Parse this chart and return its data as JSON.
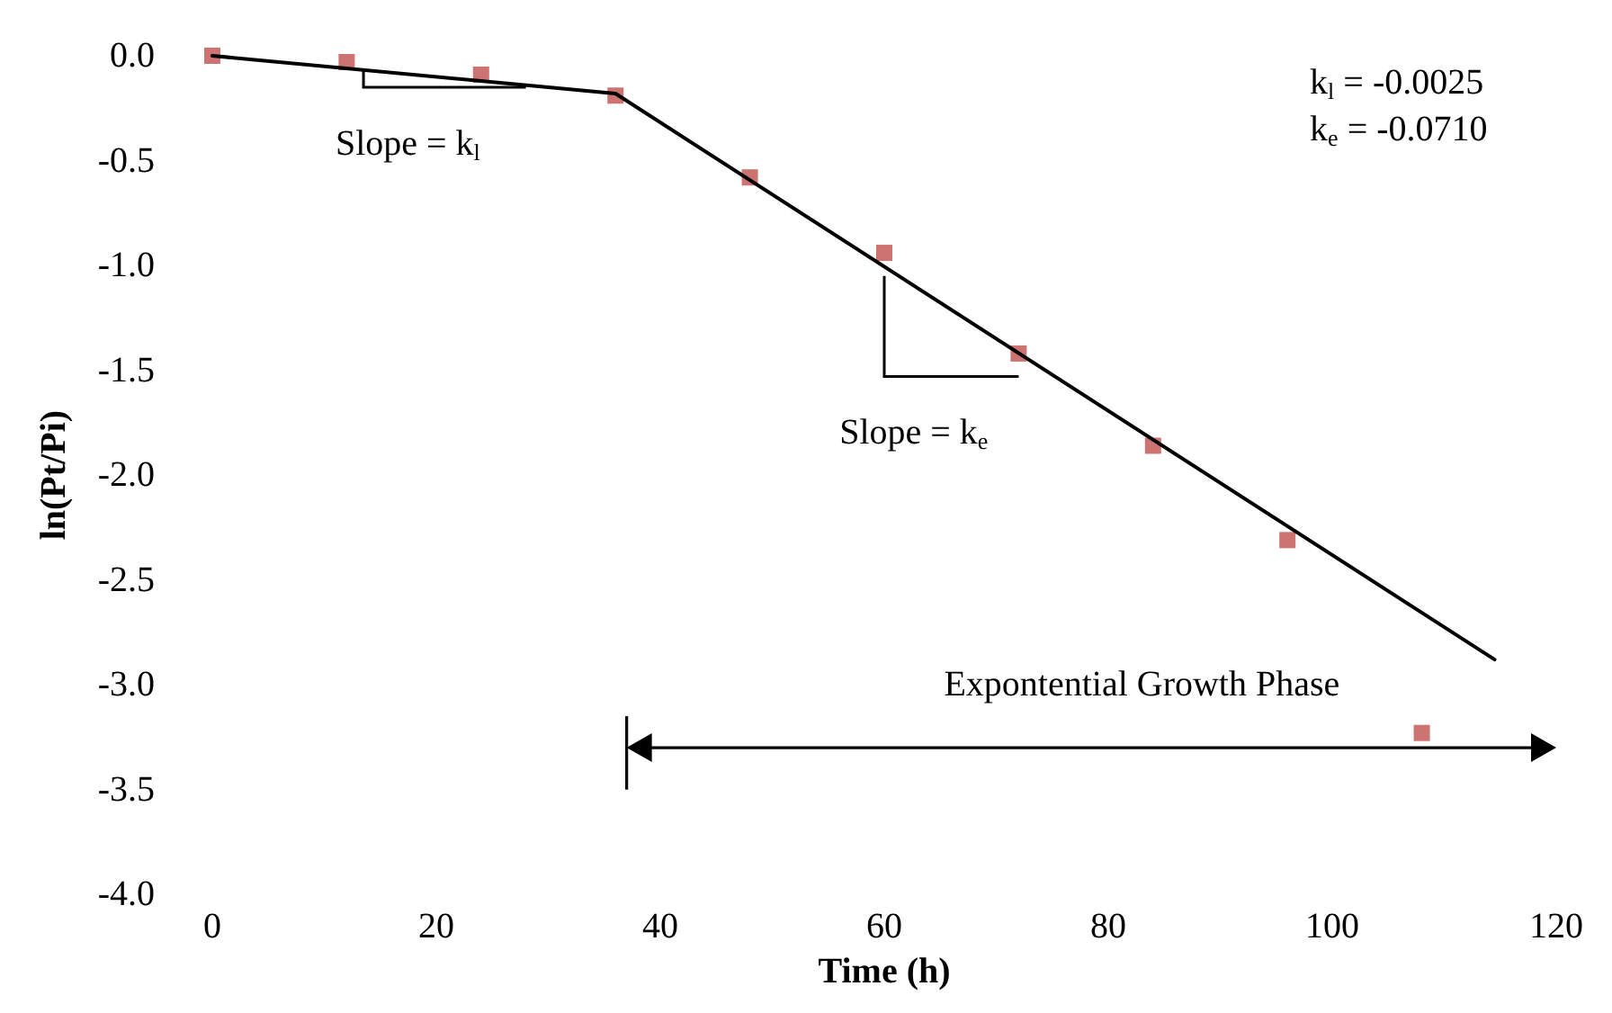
{
  "chart_data": {
    "type": "scatter",
    "xlabel": "Time (h)",
    "ylabel": "ln(Pt/Pi)",
    "xlim": [
      0,
      120
    ],
    "xticks": [
      0,
      20,
      40,
      60,
      80,
      100,
      120
    ],
    "ylim": [
      -4,
      0
    ],
    "yticks": [
      {
        "value": -4,
        "label": "-4.0"
      },
      {
        "value": -3.5,
        "label": "-3.5"
      },
      {
        "value": -3,
        "label": "-3.0"
      },
      {
        "value": -2.5,
        "label": "-2.5"
      },
      {
        "value": -2,
        "label": "-2.0"
      },
      {
        "value": -1.5,
        "label": "-1.5"
      },
      {
        "value": -1,
        "label": "-1.0"
      },
      {
        "value": -0.5,
        "label": "-0.5"
      },
      {
        "value": 0,
        "label": "0.0"
      }
    ],
    "grid": false,
    "series": [
      {
        "color": "#c0504d",
        "marker": "square",
        "x": [
          0,
          12,
          24,
          36,
          48,
          60,
          72,
          84,
          96,
          108
        ],
        "values": [
          0,
          -0.03,
          -0.09,
          -0.19,
          -0.58,
          -0.94,
          -1.42,
          -1.86,
          -2.31,
          -3.23
        ]
      },
      {
        "type": "line",
        "color": "#000000",
        "marker": "none",
        "line_style": "solid",
        "x": [
          0,
          36,
          114.5
        ],
        "values": [
          0,
          -0.18,
          -2.88
        ]
      }
    ],
    "annotations": [
      "k$_{l}$ = -0.0025",
      "k$_{e}$ = -0.0710",
      "Slope = k$_{l}$",
      "Slope = k$_{e}$",
      "Expontential Growth Phase"
    ]
  }
}
